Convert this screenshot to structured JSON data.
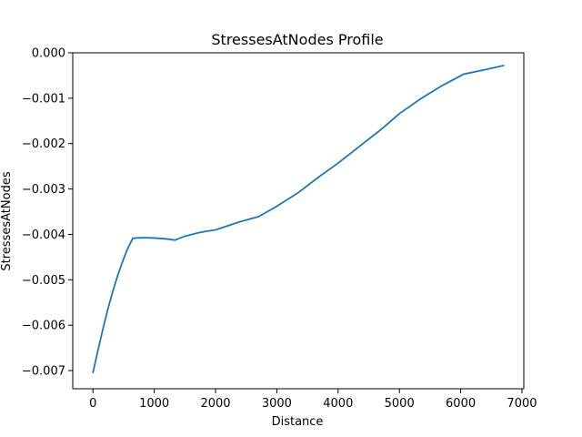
{
  "chart_data": {
    "type": "line",
    "title": "StressesAtNodes Profile",
    "xlabel": "Distance",
    "ylabel": "StressesAtNodes",
    "xlim": [
      -330,
      7030
    ],
    "ylim": [
      -0.0074,
      0.0
    ],
    "x_ticks": [
      0,
      1000,
      2000,
      3000,
      4000,
      5000,
      6000,
      7000
    ],
    "x_tick_labels": [
      "0",
      "1000",
      "2000",
      "3000",
      "4000",
      "5000",
      "6000",
      "7000"
    ],
    "y_ticks": [
      0.0,
      -0.001,
      -0.002,
      -0.003,
      -0.004,
      -0.005,
      -0.006,
      -0.007
    ],
    "y_tick_labels": [
      "0.000",
      "−0.001",
      "−0.002",
      "−0.003",
      "−0.004",
      "−0.005",
      "−0.006",
      "−0.007"
    ],
    "grid": false,
    "series": [
      {
        "color": "#1f77b4",
        "x": [
          0,
          80,
          160,
          240,
          320,
          400,
          480,
          560,
          650,
          700,
          800,
          900,
          1000,
          1100,
          1200,
          1340,
          1500,
          1700,
          1850,
          2000,
          2200,
          2400,
          2700,
          3000,
          3350,
          3700,
          4000,
          4350,
          4700,
          5000,
          5350,
          5700,
          6050,
          6400,
          6700
        ],
        "y": [
          -0.00704,
          -0.00656,
          -0.0061,
          -0.00566,
          -0.00527,
          -0.00492,
          -0.00461,
          -0.00433,
          -0.004085,
          -0.00408,
          -0.004075,
          -0.004075,
          -0.00408,
          -0.00409,
          -0.0041,
          -0.004125,
          -0.00404,
          -0.00397,
          -0.00393,
          -0.0039,
          -0.00381,
          -0.00372,
          -0.00361,
          -0.00338,
          -0.00308,
          -0.00272,
          -0.00243,
          -0.00206,
          -0.00169,
          -0.00134,
          -0.00101,
          -0.00072,
          -0.00047,
          -0.00037,
          -0.00028
        ]
      }
    ]
  }
}
